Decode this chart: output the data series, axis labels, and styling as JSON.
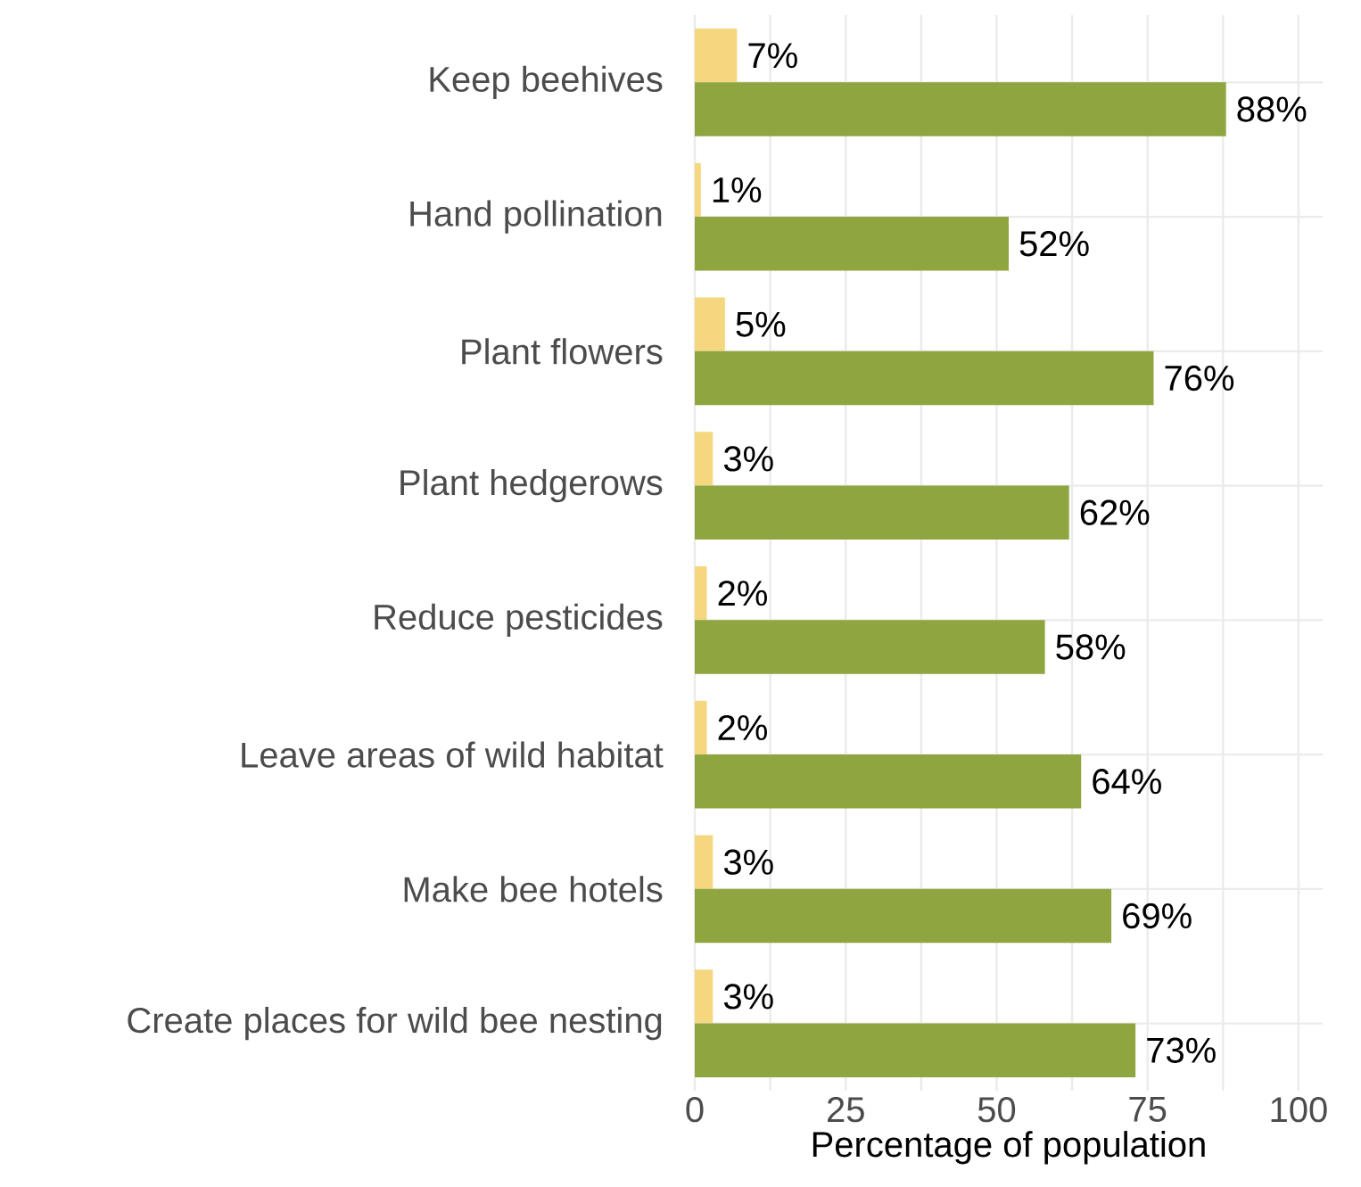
{
  "chart_data": {
    "type": "bar",
    "orientation": "horizontal",
    "xlabel": "Percentage of population",
    "categories": [
      "Keep beehives",
      "Hand pollination",
      "Plant flowers",
      "Plant hedgerows",
      "Reduce pesticides",
      "Leave areas of wild habitat",
      "Make bee hotels",
      "Create places for wild bee nesting"
    ],
    "series": [
      {
        "color": "#f5d77f",
        "values": [
          7,
          1,
          5,
          3,
          2,
          2,
          3,
          3
        ],
        "value_labels": [
          "7%",
          "1%",
          "5%",
          "3%",
          "2%",
          "2%",
          "3%",
          "3%"
        ]
      },
      {
        "color": "#8fa540",
        "values": [
          88,
          52,
          76,
          62,
          58,
          64,
          69,
          73
        ],
        "value_labels": [
          "88%",
          "52%",
          "76%",
          "62%",
          "58%",
          "64%",
          "69%",
          "73%"
        ]
      }
    ],
    "xlim": [
      0,
      104
    ],
    "xticks": [
      0,
      {
        "value": 12.5,
        "label": null
      },
      25,
      {
        "value": 37.5,
        "label": null
      },
      50,
      {
        "value": 62.5,
        "label": null
      },
      75,
      {
        "value": 87.5,
        "label": null
      },
      100
    ],
    "grid": true
  }
}
